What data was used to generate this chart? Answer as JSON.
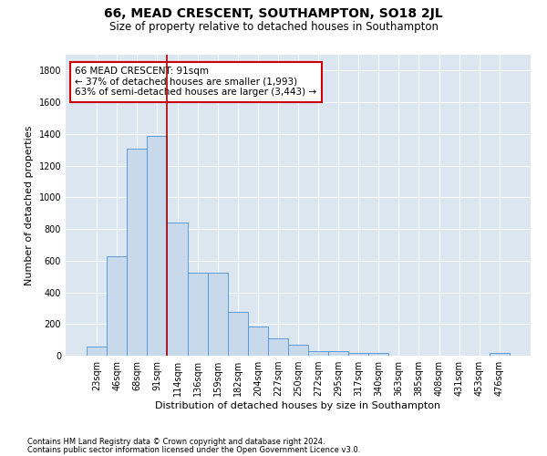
{
  "title": "66, MEAD CRESCENT, SOUTHAMPTON, SO18 2JL",
  "subtitle": "Size of property relative to detached houses in Southampton",
  "xlabel": "Distribution of detached houses by size in Southampton",
  "ylabel": "Number of detached properties",
  "categories": [
    "23sqm",
    "46sqm",
    "68sqm",
    "91sqm",
    "114sqm",
    "136sqm",
    "159sqm",
    "182sqm",
    "204sqm",
    "227sqm",
    "250sqm",
    "272sqm",
    "295sqm",
    "317sqm",
    "340sqm",
    "363sqm",
    "385sqm",
    "408sqm",
    "431sqm",
    "453sqm",
    "476sqm"
  ],
  "values": [
    55,
    630,
    1305,
    1390,
    840,
    525,
    525,
    275,
    185,
    110,
    70,
    30,
    30,
    20,
    15,
    0,
    0,
    0,
    0,
    0,
    15
  ],
  "bar_color": "#c9d9ec",
  "bar_edge_color": "#5b9bd5",
  "vline_color": "#aa0000",
  "annotation_text": "66 MEAD CRESCENT: 91sqm\n← 37% of detached houses are smaller (1,993)\n63% of semi-detached houses are larger (3,443) →",
  "annotation_box_facecolor": "white",
  "annotation_box_edgecolor": "#cc0000",
  "ylim": [
    0,
    1900
  ],
  "yticks": [
    0,
    200,
    400,
    600,
    800,
    1000,
    1200,
    1400,
    1600,
    1800
  ],
  "footnote1": "Contains HM Land Registry data © Crown copyright and database right 2024.",
  "footnote2": "Contains public sector information licensed under the Open Government Licence v3.0.",
  "plot_bg_color": "#dce6f1",
  "title_fontsize": 10,
  "subtitle_fontsize": 8.5,
  "tick_fontsize": 7,
  "label_fontsize": 8,
  "footnote_fontsize": 6,
  "annotation_fontsize": 7.5
}
